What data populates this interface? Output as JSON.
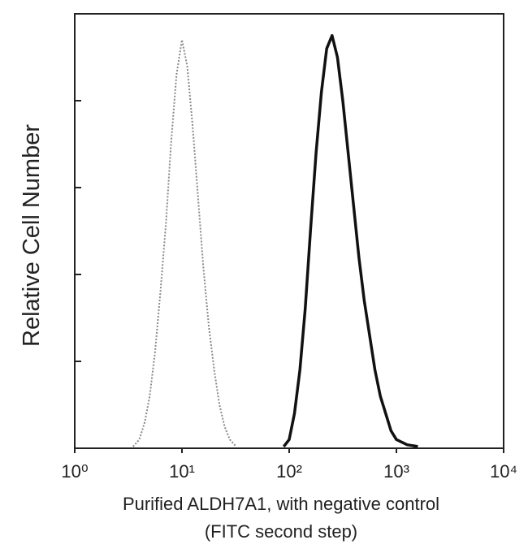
{
  "chart_data": {
    "type": "line",
    "ylabel": "Relative Cell Number",
    "xlabel": [
      "Purified ALDH7A1, with negative control",
      "(FITC second step)"
    ],
    "xscale": "log",
    "xlim": [
      1,
      10000
    ],
    "xticks": [
      {
        "value": 1,
        "label": "10⁰"
      },
      {
        "value": 10,
        "label": "10¹"
      },
      {
        "value": 100,
        "label": "10²"
      },
      {
        "value": 1000,
        "label": "10³"
      },
      {
        "value": 10000,
        "label": "10⁴"
      }
    ],
    "ylim": [
      0,
      5
    ],
    "yticks": [
      1,
      2,
      3,
      4
    ],
    "series": [
      {
        "color": "#8a8a8a",
        "dashed": true,
        "x": [
          3.5,
          4.0,
          4.5,
          5.0,
          5.6,
          6.3,
          7.1,
          7.9,
          8.9,
          10,
          11.2,
          12.6,
          14.1,
          15.8,
          17.8,
          20,
          22.4,
          25,
          28,
          32
        ],
        "values": [
          0.02,
          0.1,
          0.3,
          0.6,
          1.1,
          1.8,
          2.6,
          3.5,
          4.3,
          4.7,
          4.4,
          3.7,
          2.9,
          2.1,
          1.4,
          0.9,
          0.5,
          0.25,
          0.1,
          0.02
        ]
      },
      {
        "color": "#111111",
        "dashed": false,
        "x": [
          89,
          100,
          112,
          126,
          141,
          158,
          178,
          200,
          224,
          251,
          282,
          316,
          355,
          398,
          447,
          501,
          562,
          631,
          708,
          794,
          891,
          1000,
          1259,
          1585
        ],
        "values": [
          0.02,
          0.1,
          0.4,
          0.9,
          1.6,
          2.5,
          3.4,
          4.1,
          4.6,
          4.75,
          4.5,
          4.0,
          3.4,
          2.8,
          2.2,
          1.7,
          1.3,
          0.9,
          0.6,
          0.4,
          0.2,
          0.1,
          0.04,
          0.02
        ]
      }
    ]
  }
}
